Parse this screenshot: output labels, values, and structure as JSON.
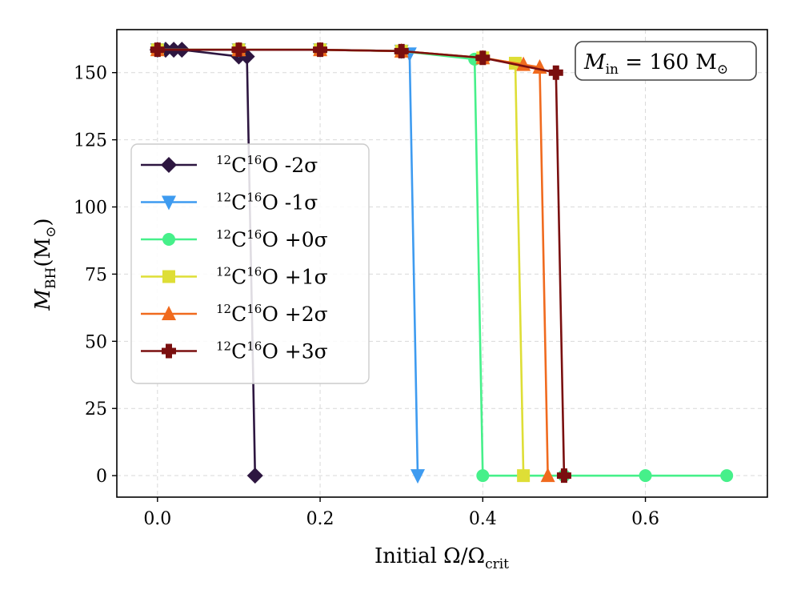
{
  "chart_data": {
    "type": "line",
    "xlabel": {
      "main": "Initial Ω/Ω",
      "sub": "crit"
    },
    "ylabel": {
      "main": "M",
      "sub": "BH",
      "unit": "(M",
      "unit_sub": "⊙",
      "unit_close": ")"
    },
    "xlim": [
      -0.05,
      0.75
    ],
    "ylim": [
      -8,
      166
    ],
    "xticks": [
      0.0,
      0.2,
      0.4,
      0.6
    ],
    "xtick_labels": [
      "0.0",
      "0.2",
      "0.4",
      "0.6"
    ],
    "yticks": [
      0,
      25,
      50,
      75,
      100,
      125,
      150
    ],
    "ytick_labels": [
      "0",
      "25",
      "50",
      "75",
      "100",
      "125",
      "150"
    ],
    "grid": true,
    "annotation": {
      "main": "M",
      "sub": "in",
      "rest": " = 160 M",
      "rest_sub": "⊙"
    },
    "legend_position": "center-left",
    "series": [
      {
        "name_sup1": "12",
        "name_mid": "C",
        "name_sup2": "16",
        "name_end": "O -2σ",
        "color": "#2d1640",
        "marker": "diamond",
        "points": [
          [
            0.0,
            158.5
          ],
          [
            0.01,
            158.5
          ],
          [
            0.02,
            158.5
          ],
          [
            0.03,
            158.5
          ],
          [
            0.1,
            156
          ],
          [
            0.11,
            156
          ],
          [
            0.12,
            0
          ]
        ]
      },
      {
        "name_sup1": "12",
        "name_mid": "C",
        "name_sup2": "16",
        "name_end": "O -1σ",
        "color": "#3e9bf0",
        "marker": "triangle-down",
        "points": [
          [
            0.0,
            158.5
          ],
          [
            0.1,
            158.5
          ],
          [
            0.2,
            158.5
          ],
          [
            0.3,
            158
          ],
          [
            0.31,
            157
          ],
          [
            0.32,
            0
          ]
        ]
      },
      {
        "name_sup1": "12",
        "name_mid": "C",
        "name_sup2": "16",
        "name_end": "O +0σ",
        "color": "#46f08a",
        "marker": "circle",
        "points": [
          [
            0.0,
            158.5
          ],
          [
            0.1,
            158.5
          ],
          [
            0.2,
            158.5
          ],
          [
            0.3,
            158
          ],
          [
            0.39,
            155
          ],
          [
            0.4,
            0
          ],
          [
            0.5,
            0
          ],
          [
            0.6,
            0
          ],
          [
            0.7,
            0
          ]
        ]
      },
      {
        "name_sup1": "12",
        "name_mid": "C",
        "name_sup2": "16",
        "name_end": "O +1σ",
        "color": "#dede36",
        "marker": "square",
        "points": [
          [
            0.0,
            158.5
          ],
          [
            0.1,
            158.5
          ],
          [
            0.2,
            158.5
          ],
          [
            0.3,
            158
          ],
          [
            0.4,
            155.5
          ],
          [
            0.44,
            153.5
          ],
          [
            0.45,
            0
          ]
        ]
      },
      {
        "name_sup1": "12",
        "name_mid": "C",
        "name_sup2": "16",
        "name_end": "O +2σ",
        "color": "#f06a1e",
        "marker": "triangle-up",
        "points": [
          [
            0.0,
            158.5
          ],
          [
            0.1,
            158.5
          ],
          [
            0.2,
            158.5
          ],
          [
            0.3,
            158
          ],
          [
            0.4,
            155.5
          ],
          [
            0.45,
            153
          ],
          [
            0.47,
            152
          ],
          [
            0.48,
            0
          ]
        ]
      },
      {
        "name_sup1": "12",
        "name_mid": "C",
        "name_sup2": "16",
        "name_end": "O +3σ",
        "color": "#7a0f0f",
        "marker": "plus",
        "points": [
          [
            0.0,
            158.5
          ],
          [
            0.1,
            158.5
          ],
          [
            0.2,
            158.5
          ],
          [
            0.3,
            158
          ],
          [
            0.4,
            155.5
          ],
          [
            0.49,
            150
          ],
          [
            0.5,
            0
          ]
        ]
      }
    ]
  }
}
